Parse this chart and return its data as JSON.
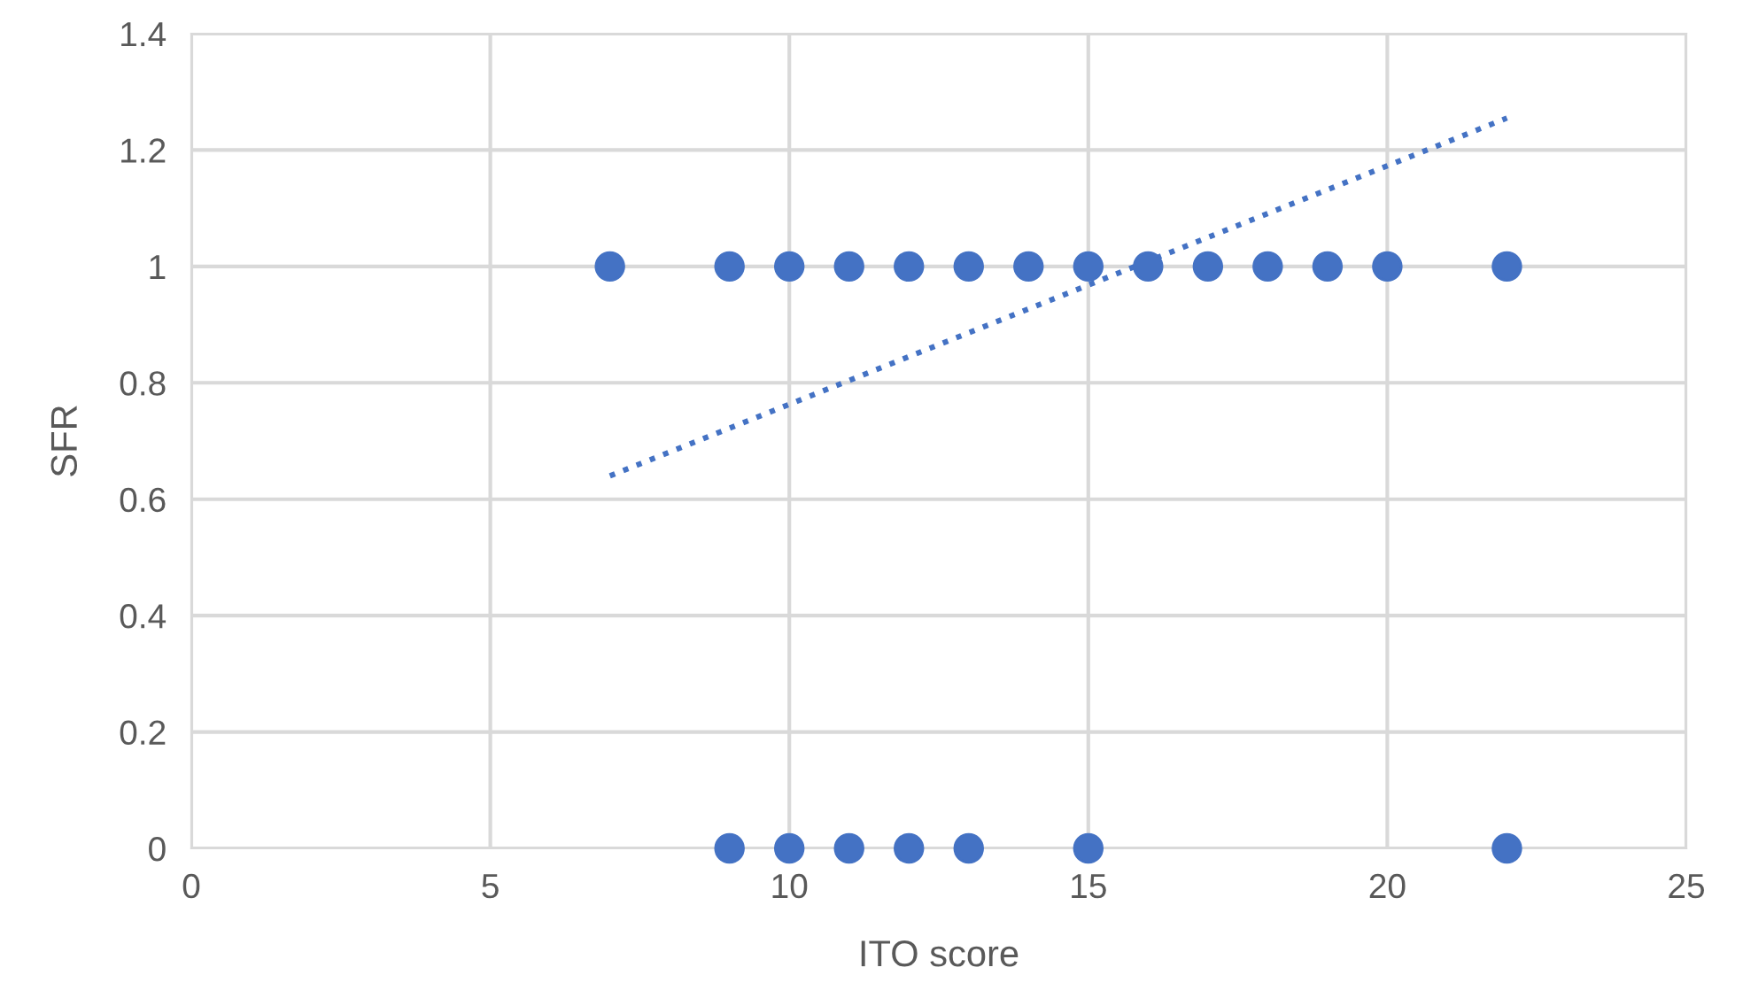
{
  "chart_data": {
    "type": "scatter",
    "xlabel": "ITO score",
    "ylabel": "SFR",
    "xlim": [
      0,
      25
    ],
    "xticks": [
      0,
      5,
      10,
      15,
      20,
      25
    ],
    "ylim": [
      0,
      1.4
    ],
    "yticks": [
      {
        "value": 0,
        "label": "0"
      },
      {
        "value": 0.2,
        "label": "0.2"
      },
      {
        "value": 0.4,
        "label": "0.4"
      },
      {
        "value": 0.6,
        "label": "0.6"
      },
      {
        "value": 0.8,
        "label": "0.8"
      },
      {
        "value": 1,
        "label": "1"
      },
      {
        "value": 1.2,
        "label": "1.2"
      },
      {
        "value": 1.4,
        "label": "1.4"
      }
    ],
    "grid": true,
    "marker": "circle",
    "series": [
      {
        "color": "#4472c4",
        "x": [
          7,
          9,
          10,
          11,
          12,
          13,
          14,
          15,
          16,
          17,
          18,
          19,
          20,
          22,
          9,
          10,
          11,
          12,
          13,
          15,
          22
        ],
        "values": [
          1,
          1,
          1,
          1,
          1,
          1,
          1,
          1,
          1,
          1,
          1,
          1,
          1,
          1,
          0,
          0,
          0,
          0,
          0,
          0,
          0
        ]
      },
      {
        "type": "line",
        "color": "#4472c4",
        "line_style": "dotted",
        "marker": "none",
        "x": [
          7,
          22
        ],
        "values": [
          0.64,
          1.255
        ]
      }
    ]
  }
}
